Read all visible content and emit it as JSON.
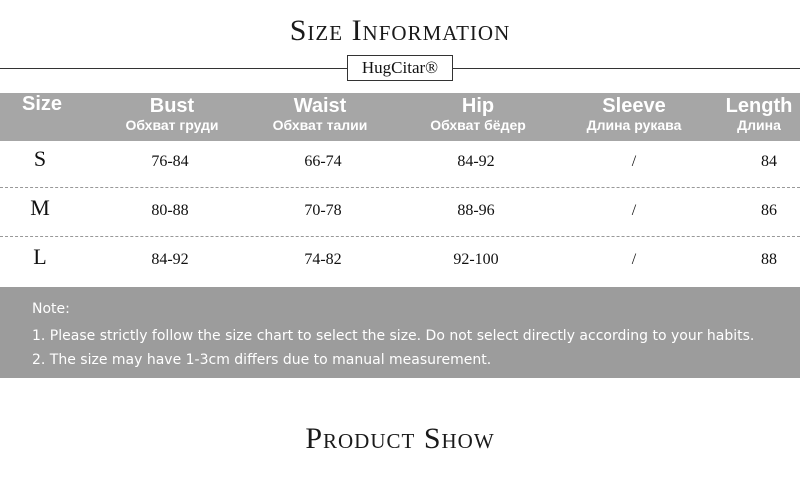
{
  "header": {
    "title": "Size Information",
    "brand": "HugCitar®"
  },
  "table": {
    "columns": [
      {
        "name": "Size",
        "sub": null
      },
      {
        "name": "Bust",
        "sub": "Обхват груди"
      },
      {
        "name": "Waist",
        "sub": "Обхват талии"
      },
      {
        "name": "Hip",
        "sub": "Обхват бёдер"
      },
      {
        "name": "Sleeve",
        "sub": "Длина рукава"
      },
      {
        "name": "Length",
        "sub": "Длина"
      }
    ],
    "rows": [
      [
        "S",
        "76-84",
        "66-74",
        "84-92",
        "/",
        "84"
      ],
      [
        "M",
        "80-88",
        "70-78",
        "88-96",
        "/",
        "86"
      ],
      [
        "L",
        "84-92",
        "74-82",
        "92-100",
        "/",
        "88"
      ]
    ]
  },
  "note": {
    "title": "Note:",
    "lines": [
      "1. Please strictly follow the size chart to select the size. Do not select directly according to your habits.",
      "2. The size may have 1-3cm differs due to manual measurement."
    ]
  },
  "footer": {
    "title": "Product Show"
  }
}
